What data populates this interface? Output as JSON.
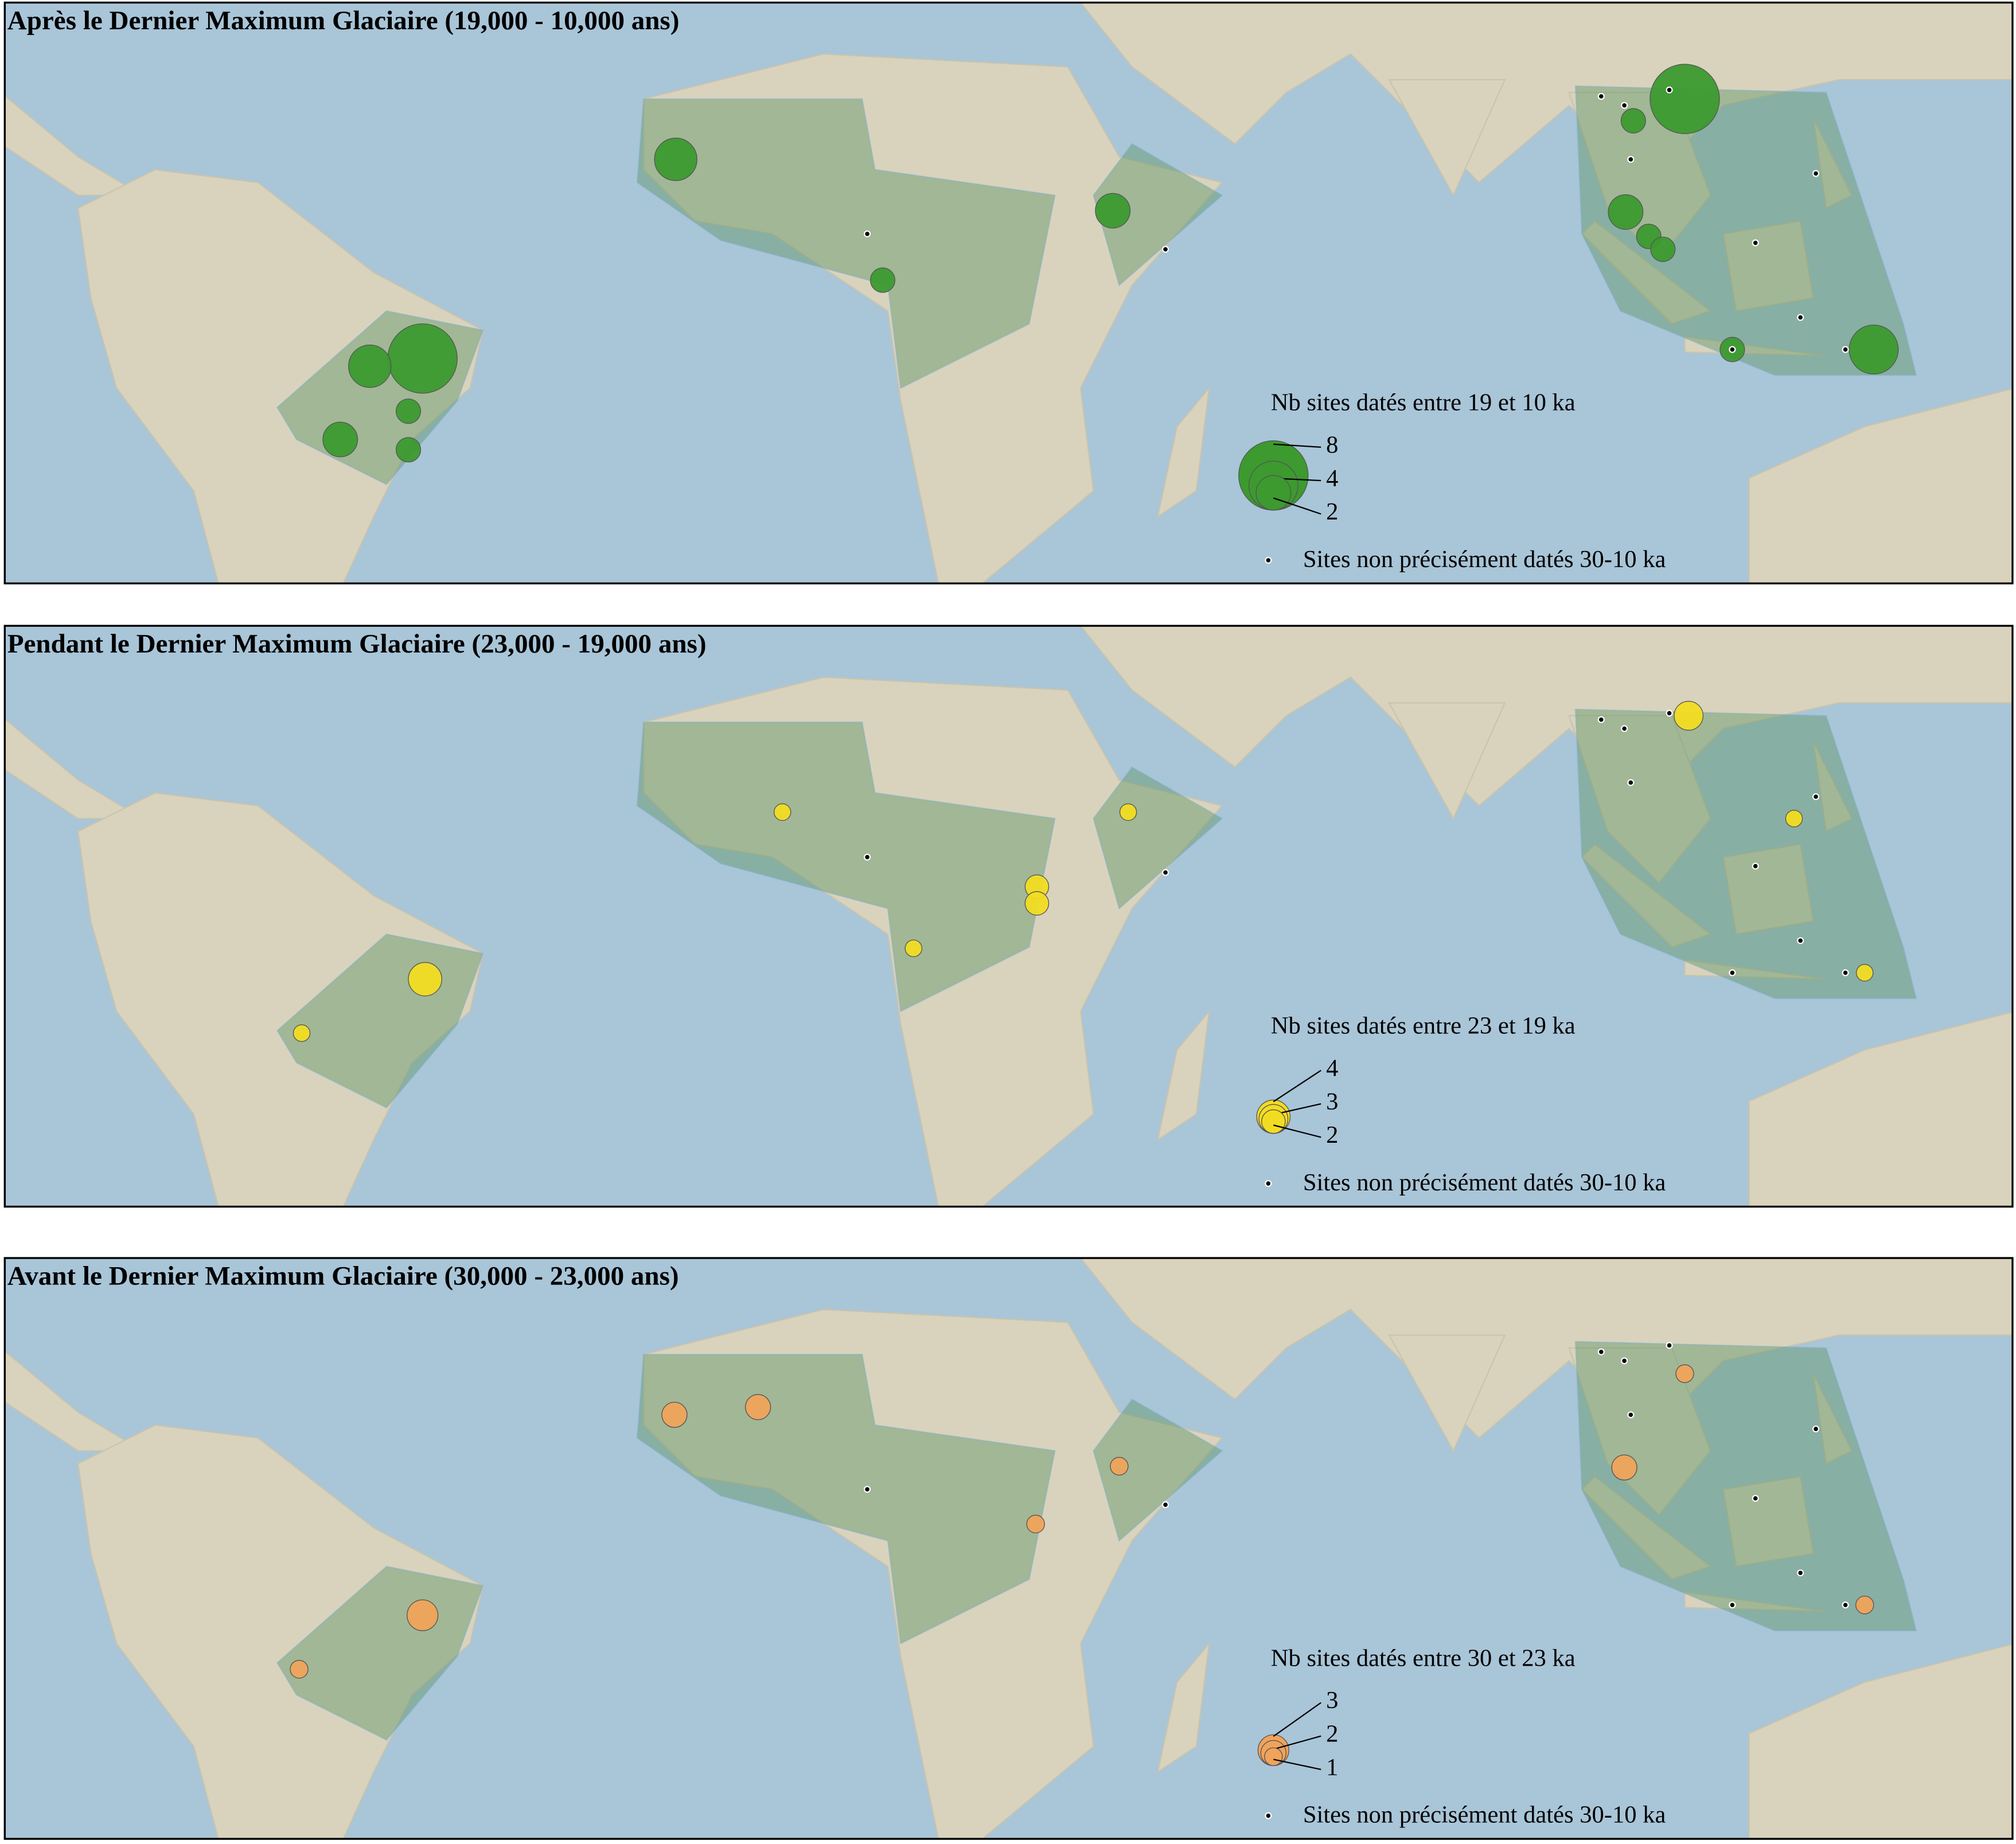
{
  "panels": [
    {
      "title": "Après le Dernier Maximum Glaciaire (19,000 - 10,000 ans)",
      "legend_title": "Nb sites datés entre 19 et 10 ka",
      "legend_sizes": [
        8,
        4,
        2
      ],
      "dot_legend": "Sites non précisément datés 30-10 ka",
      "color": "#3c9a2f",
      "sites": [
        3,
        8,
        3,
        1,
        2,
        1,
        2,
        1,
        8,
        1,
        2,
        1,
        1,
        4,
        1
      ]
    },
    {
      "title": "Pendant le Dernier Maximum Glaciaire (23,000 - 19,000 ans)",
      "legend_title": "Nb sites datés entre 23 et 19 ka",
      "legend_sizes": [
        4,
        3,
        2
      ],
      "dot_legend": "Sites non précisément datés 30-10 ka",
      "color": "#f2dc22",
      "sites": [
        4,
        2,
        2,
        3,
        1,
        1,
        1,
        1,
        1,
        1
      ]
    },
    {
      "title": "Avant le Dernier Maximum Glaciaire (30,000 - 23,000 ans)",
      "legend_title": "Nb sites datés entre 30 et 23 ka",
      "legend_sizes": [
        3,
        2,
        1
      ],
      "dot_legend": "Sites non précisément datés 30-10 ka",
      "color": "#f0a35a",
      "sites": [
        2,
        2,
        3,
        2,
        1,
        1,
        1,
        1,
        1
      ]
    }
  ]
}
